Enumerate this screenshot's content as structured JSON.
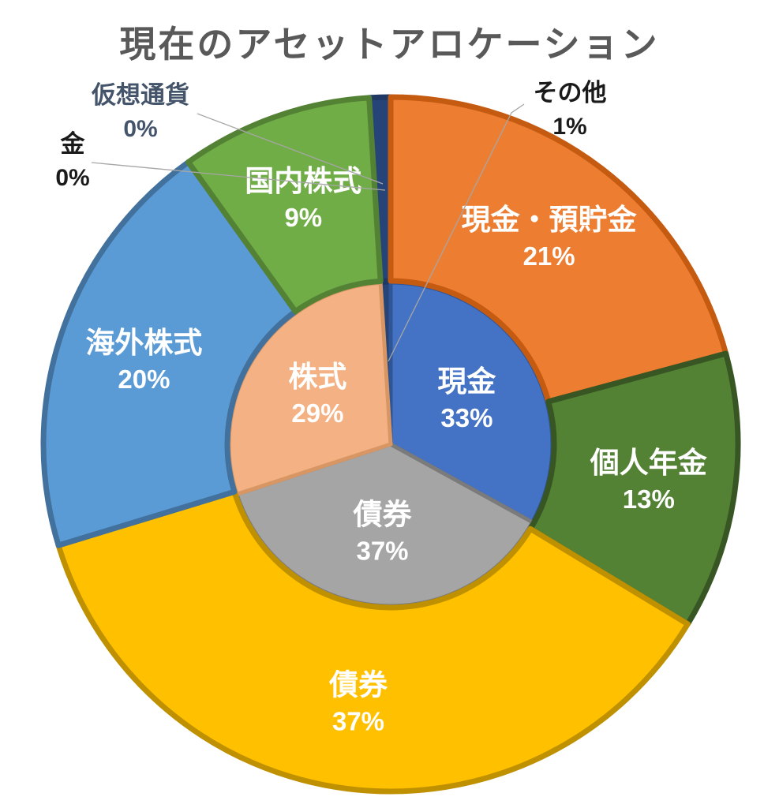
{
  "chart_data": {
    "type": "pie",
    "subtype": "two-level-donut",
    "title": "現在のアセットアロケーション",
    "title_color": "#595959",
    "legend": "none",
    "background": "#FFFFFF",
    "inside_label_color": "#FFFFFF",
    "leader_line_color": "#A6A6A6",
    "rings": [
      {
        "id": "asset-class",
        "position": "inner",
        "slices": [
          {
            "id": "cash",
            "label": "現金",
            "value": 33,
            "pct_label": "33%",
            "fill": "#4472C4",
            "border": "#2F5597",
            "label_style": "inside-white"
          },
          {
            "id": "bonds",
            "label": "債券",
            "value": 37,
            "pct_label": "37%",
            "fill": "#A5A5A5",
            "border": "#7B7B7B",
            "label_style": "inside-white"
          },
          {
            "id": "equities",
            "label": "株式",
            "value": 29,
            "pct_label": "29%",
            "fill": "#F4B183",
            "border": "#D79664",
            "label_style": "inside-white"
          },
          {
            "id": "other",
            "label": "その他",
            "value": 1,
            "pct_label": "1%",
            "fill": "#264478",
            "border": "#1F3864",
            "label_style": "outside"
          }
        ]
      },
      {
        "id": "account-detail",
        "position": "outer",
        "slices": [
          {
            "id": "cash-deposits",
            "label": "現金・預貯金",
            "value": 21,
            "pct_label": "21%",
            "fill": "#ED7D31",
            "border": "#C55A11",
            "label_style": "inside-white"
          },
          {
            "id": "personal-pension",
            "label": "個人年金",
            "value": 13,
            "pct_label": "13%",
            "fill": "#548235",
            "border": "#375623",
            "label_style": "inside-white"
          },
          {
            "id": "bonds",
            "label": "債券",
            "value": 37,
            "pct_label": "37%",
            "fill": "#FFC000",
            "border": "#BF9000",
            "label_style": "inside-white"
          },
          {
            "id": "foreign-stocks",
            "label": "海外株式",
            "value": 20,
            "pct_label": "20%",
            "fill": "#5B9BD5",
            "border": "#41719C",
            "label_style": "inside-white"
          },
          {
            "id": "domestic-stocks",
            "label": "国内株式",
            "value": 9,
            "pct_label": "9%",
            "fill": "#70AD47",
            "border": "#548235",
            "label_style": "inside-white"
          },
          {
            "id": "gold",
            "label": "金",
            "value": 0,
            "pct_label": "0%",
            "fill": "#264478",
            "border": "#1F3864",
            "label_style": "outside"
          },
          {
            "id": "crypto",
            "label": "仮想通貨",
            "value": 0,
            "pct_label": "0%",
            "fill": "#264478",
            "border": "#1F3864",
            "label_style": "outside"
          },
          {
            "id": "other",
            "label": "その他",
            "value": 1,
            "pct_label": "1%",
            "fill": "#264478",
            "border": "#1F3864",
            "label_style": "none"
          }
        ]
      }
    ],
    "external_labels": [
      {
        "for": "crypto",
        "text": "仮想通貨",
        "pct": "0%",
        "color": "#44546A"
      },
      {
        "for": "gold",
        "text": "金",
        "pct": "0%",
        "color": "#1A1A1A"
      },
      {
        "for": "other",
        "text": "その他",
        "pct": "1%",
        "color": "#1A1A1A"
      }
    ]
  }
}
